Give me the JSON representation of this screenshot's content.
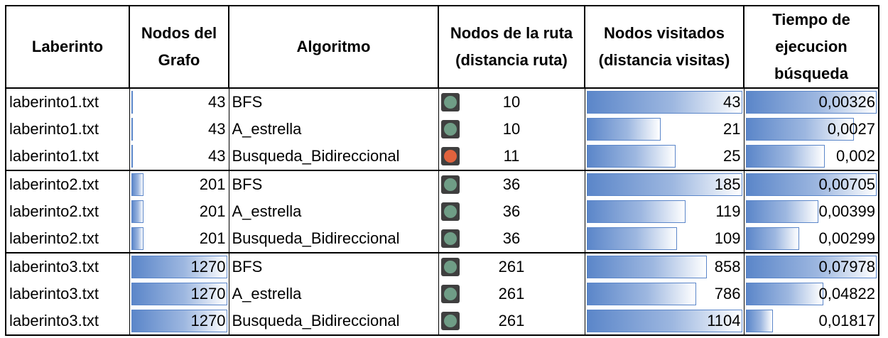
{
  "headers": {
    "laberinto": "Laberinto",
    "nodos_grafo": "Nodos del Grafo",
    "algoritmo": "Algoritmo",
    "nodos_ruta": "Nodos de la ruta (distancia ruta)",
    "nodos_visitados": "Nodos visitados (distancia visitas)",
    "tiempo": "Tiempo de ejecucion búsqueda"
  },
  "colors": {
    "light_green": "#6f9d86",
    "light_red": "#e0623d",
    "bar_blue": "#5b86c9"
  },
  "rows": [
    {
      "laberinto": "laberinto1.txt",
      "nodos_grafo": "43",
      "algoritmo": "BFS",
      "ruta": "10",
      "estado": "green",
      "visitados": "43",
      "tiempo": "0,00326"
    },
    {
      "laberinto": "laberinto1.txt",
      "nodos_grafo": "43",
      "algoritmo": "A_estrella",
      "ruta": "10",
      "estado": "green",
      "visitados": "21",
      "tiempo": "0,0027"
    },
    {
      "laberinto": "laberinto1.txt",
      "nodos_grafo": "43",
      "algoritmo": "Busqueda_Bidireccional",
      "ruta": "11",
      "estado": "red",
      "visitados": "25",
      "tiempo": "0,002"
    },
    {
      "laberinto": "laberinto2.txt",
      "nodos_grafo": "201",
      "algoritmo": "BFS",
      "ruta": "36",
      "estado": "green",
      "visitados": "185",
      "tiempo": "0,00705"
    },
    {
      "laberinto": "laberinto2.txt",
      "nodos_grafo": "201",
      "algoritmo": "A_estrella",
      "ruta": "36",
      "estado": "green",
      "visitados": "119",
      "tiempo": "0,00399"
    },
    {
      "laberinto": "laberinto2.txt",
      "nodos_grafo": "201",
      "algoritmo": "Busqueda_Bidireccional",
      "ruta": "36",
      "estado": "green",
      "visitados": "109",
      "tiempo": "0,00299"
    },
    {
      "laberinto": "laberinto3.txt",
      "nodos_grafo": "1270",
      "algoritmo": "BFS",
      "ruta": "261",
      "estado": "green",
      "visitados": "858",
      "tiempo": "0,07978"
    },
    {
      "laberinto": "laberinto3.txt",
      "nodos_grafo": "1270",
      "algoritmo": "A_estrella",
      "ruta": "261",
      "estado": "green",
      "visitados": "786",
      "tiempo": "0,04822"
    },
    {
      "laberinto": "laberinto3.txt",
      "nodos_grafo": "1270",
      "algoritmo": "Busqueda_Bidireccional",
      "ruta": "261",
      "estado": "green",
      "visitados": "1104",
      "tiempo": "0,01817"
    }
  ]
}
